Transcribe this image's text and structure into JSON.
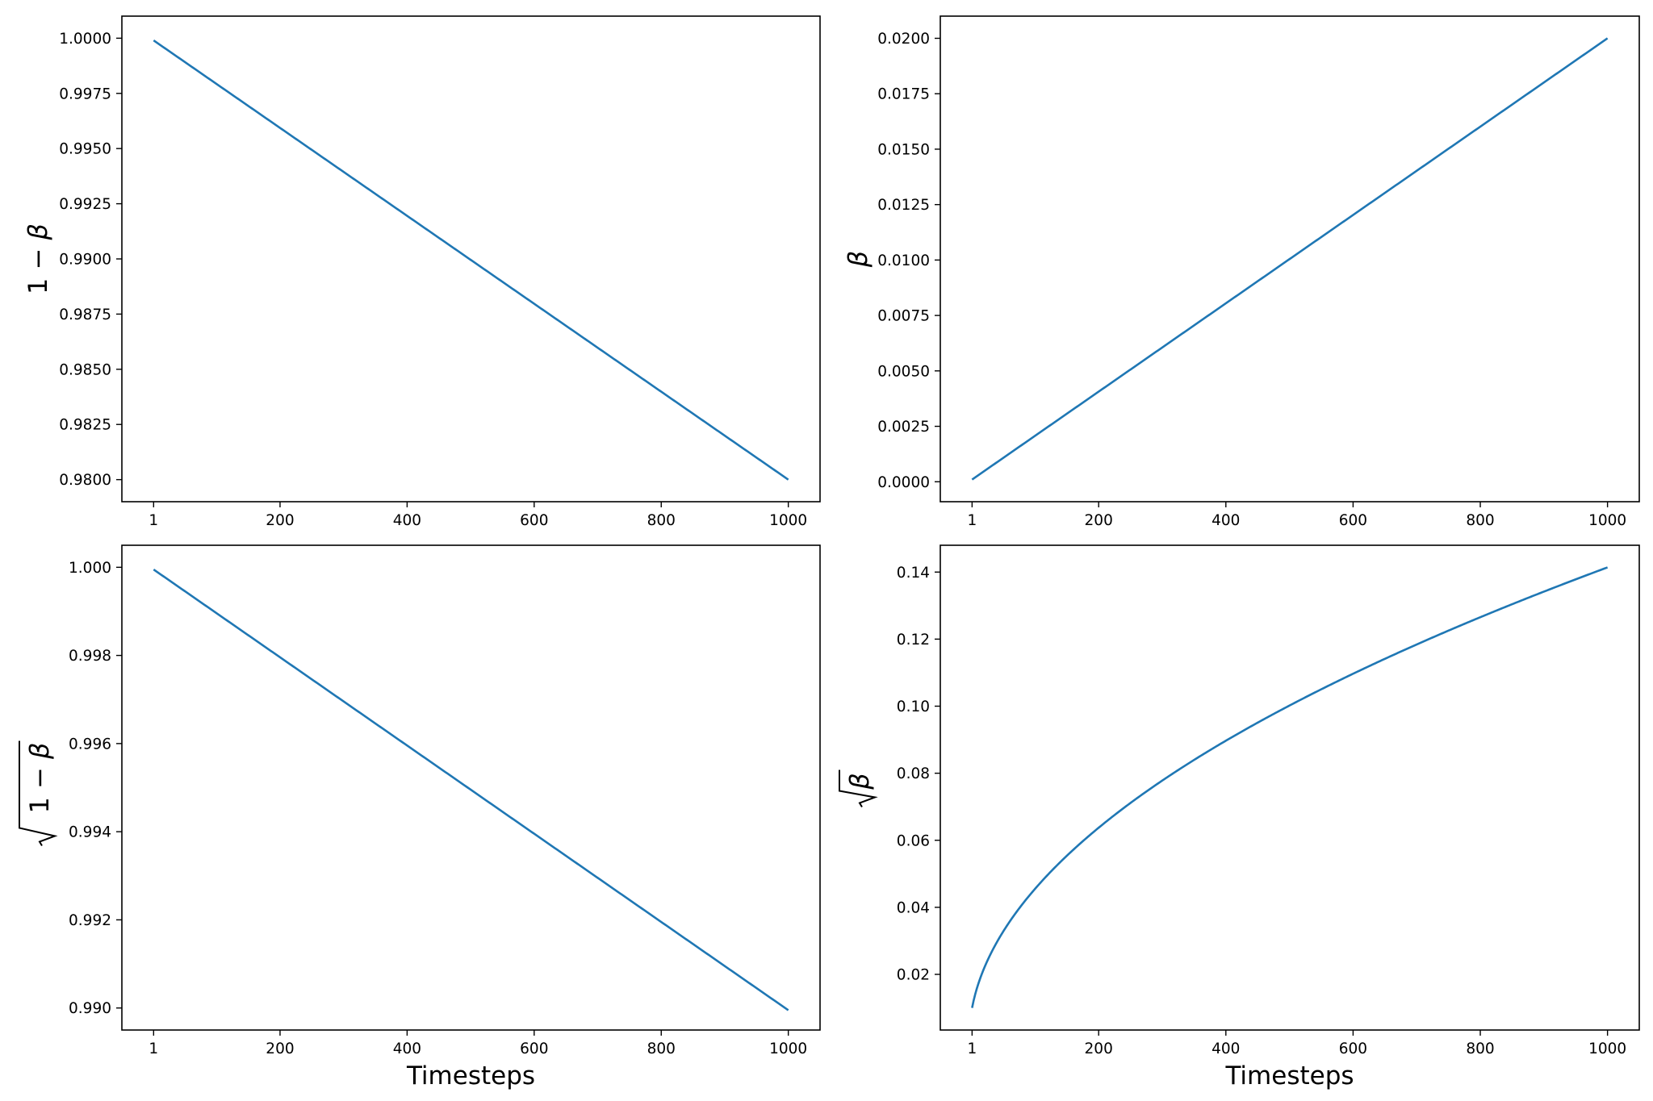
{
  "chart_data": [
    {
      "type": "line",
      "xlabel": "",
      "ylabel_text": "1 − β",
      "x_range": [
        1,
        1000
      ],
      "xlim": [
        -48.95,
        1049.95
      ],
      "ylim": [
        0.979,
        1.001
      ],
      "grid": false,
      "x_ticks": [
        1,
        200,
        400,
        600,
        800,
        1000
      ],
      "x_tick_labels": [
        "1",
        "200",
        "400",
        "600",
        "800",
        "1000"
      ],
      "y_ticks": [
        0.98,
        0.9825,
        0.985,
        0.9875,
        0.99,
        0.9925,
        0.995,
        0.9975,
        1.0
      ],
      "y_tick_labels": [
        "0.9800",
        "0.9825",
        "0.9850",
        "0.9875",
        "0.9900",
        "0.9925",
        "0.9950",
        "0.9975",
        "1.0000"
      ],
      "series": [
        {
          "x": [
            1,
            1000
          ],
          "y": [
            0.9999,
            0.98
          ],
          "color": "#1f77b4"
        }
      ]
    },
    {
      "type": "line",
      "xlabel": "",
      "ylabel_text": "β",
      "x_range": [
        1,
        1000
      ],
      "xlim": [
        -48.95,
        1049.95
      ],
      "ylim": [
        -0.0009,
        0.021
      ],
      "grid": false,
      "x_ticks": [
        1,
        200,
        400,
        600,
        800,
        1000
      ],
      "x_tick_labels": [
        "1",
        "200",
        "400",
        "600",
        "800",
        "1000"
      ],
      "y_ticks": [
        0.0,
        0.0025,
        0.005,
        0.0075,
        0.01,
        0.0125,
        0.015,
        0.0175,
        0.02
      ],
      "y_tick_labels": [
        "0.0000",
        "0.0025",
        "0.0050",
        "0.0075",
        "0.0100",
        "0.0125",
        "0.0150",
        "0.0175",
        "0.0200"
      ],
      "series": [
        {
          "x": [
            1,
            1000
          ],
          "y": [
            0.0001,
            0.02
          ],
          "color": "#1f77b4"
        }
      ]
    },
    {
      "type": "line",
      "xlabel": "Timesteps",
      "ylabel_text": "√(1 − β)",
      "x_range": [
        1,
        1000
      ],
      "xlim": [
        -48.95,
        1049.95
      ],
      "ylim": [
        0.9895,
        1.0005
      ],
      "grid": false,
      "x_ticks": [
        1,
        200,
        400,
        600,
        800,
        1000
      ],
      "x_tick_labels": [
        "1",
        "200",
        "400",
        "600",
        "800",
        "1000"
      ],
      "y_ticks": [
        0.99,
        0.992,
        0.994,
        0.996,
        0.998,
        1.0
      ],
      "y_tick_labels": [
        "0.990",
        "0.992",
        "0.994",
        "0.996",
        "0.998",
        "1.000"
      ],
      "series": [
        {
          "x": [
            1,
            1000
          ],
          "y": [
            0.99995,
            0.98995
          ],
          "color": "#1f77b4"
        }
      ]
    },
    {
      "type": "line",
      "xlabel": "Timesteps",
      "ylabel_text": "√β",
      "x_range": [
        1,
        1000
      ],
      "xlim": [
        -48.95,
        1049.95
      ],
      "ylim": [
        0.0034,
        0.148
      ],
      "grid": false,
      "x_ticks": [
        1,
        200,
        400,
        600,
        800,
        1000
      ],
      "x_tick_labels": [
        "1",
        "200",
        "400",
        "600",
        "800",
        "1000"
      ],
      "y_ticks": [
        0.02,
        0.04,
        0.06,
        0.08,
        0.1,
        0.12,
        0.14
      ],
      "y_tick_labels": [
        "0.02",
        "0.04",
        "0.06",
        "0.08",
        "0.10",
        "0.12",
        "0.14"
      ],
      "series": [
        {
          "x": [
            1,
            1000
          ],
          "y": [
            0.01,
            0.1414
          ],
          "color": "#1f77b4"
        }
      ]
    }
  ]
}
